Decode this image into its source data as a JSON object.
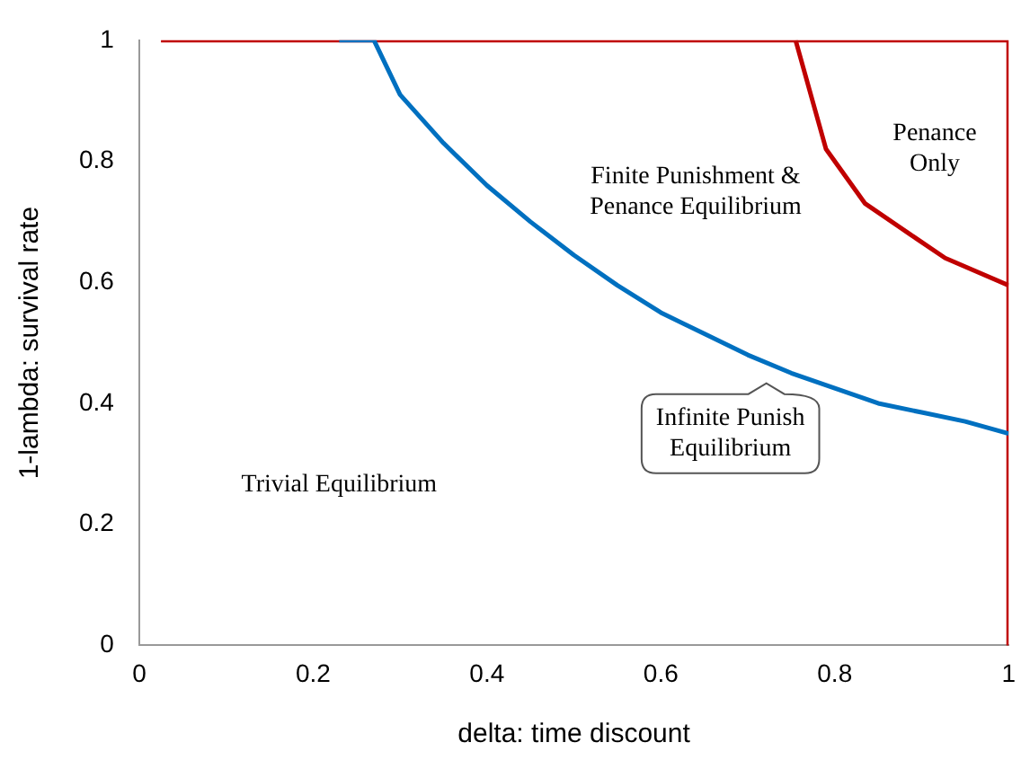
{
  "chart_data": {
    "type": "line",
    "xlabel": "delta: time discount",
    "ylabel": "1-lambda: survival rate",
    "xlim": [
      0,
      1
    ],
    "ylim": [
      0,
      1
    ],
    "xticks": [
      0,
      0.2,
      0.4,
      0.6,
      0.8,
      1
    ],
    "yticks": [
      0,
      0.2,
      0.4,
      0.6,
      0.8,
      1
    ],
    "grid": false,
    "legend": false,
    "marker": "none",
    "line_style": "solid",
    "series": [
      {
        "color": "#0070c0",
        "x": [
          0.23,
          0.27,
          0.3,
          0.35,
          0.4,
          0.45,
          0.5,
          0.55,
          0.6,
          0.65,
          0.7,
          0.75,
          0.8,
          0.85,
          0.9,
          0.95,
          1
        ],
        "values": [
          1,
          1,
          0.91,
          0.83,
          0.76,
          0.7,
          0.645,
          0.595,
          0.55,
          0.515,
          0.48,
          0.45,
          0.425,
          0.4,
          0.385,
          0.37,
          0.35
        ]
      },
      {
        "color": "#c00000",
        "x": [
          0.025,
          1,
          1
        ],
        "values": [
          1,
          1,
          0
        ]
      },
      {
        "color": "#c00000",
        "x": [
          0.755,
          0.79,
          0.835,
          0.886,
          0.927,
          1
        ],
        "values": [
          1,
          0.82,
          0.73,
          0.68,
          0.64,
          0.595
        ]
      }
    ],
    "annotations": [
      "Penance\nOnly",
      "Finite Punishment &\nPenance Equilibrium",
      "Infinite Punish\nEquilibrium",
      "Trivial Equilibrium"
    ]
  }
}
